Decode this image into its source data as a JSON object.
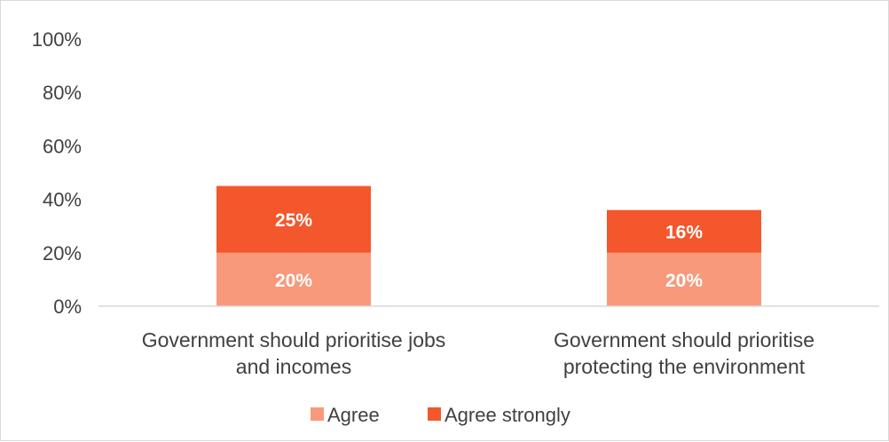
{
  "chart_data": {
    "type": "bar",
    "stacked": true,
    "categories": [
      [
        "Government should prioritise jobs",
        "and incomes"
      ],
      [
        "Government should prioritise",
        "protecting the environment"
      ]
    ],
    "series": [
      {
        "name": "Agree",
        "values": [
          20,
          20
        ],
        "labels": [
          "20%",
          "20%"
        ],
        "color": "#f8997c"
      },
      {
        "name": "Agree strongly",
        "values": [
          25,
          16
        ],
        "labels": [
          "25%",
          "16%"
        ],
        "color": "#f3572b"
      }
    ],
    "ylim": [
      0,
      100
    ],
    "yticks": [
      "0%",
      "20%",
      "40%",
      "60%",
      "80%",
      "100%"
    ],
    "ytick_values": [
      0,
      20,
      40,
      60,
      80,
      100
    ],
    "grid": false,
    "legend": "bottom"
  }
}
